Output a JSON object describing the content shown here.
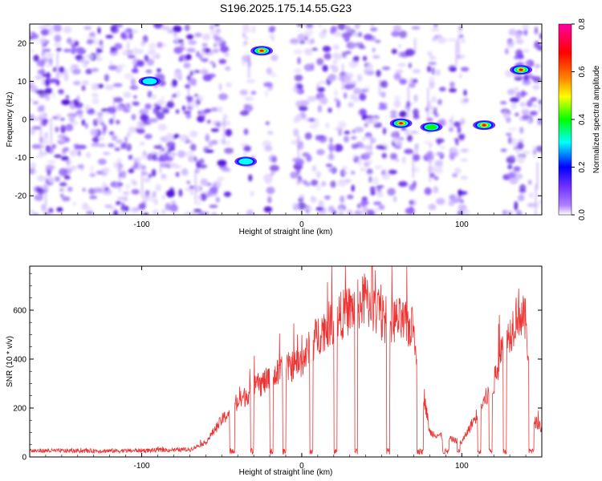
{
  "chart_data": [
    {
      "type": "heatmap",
      "title": "S196.2025.175.14.55.G23",
      "xlabel": "Height of straight line (km)",
      "ylabel": "Frequency (Hz)",
      "xlim": [
        -170,
        150
      ],
      "ylim": [
        -25,
        25
      ],
      "xticks": [
        -100,
        0,
        100
      ],
      "yticks": [
        -20,
        -10,
        0,
        10,
        20
      ],
      "colorbar": {
        "label": "Normalized spectral amplitude",
        "range": [
          0,
          0.8
        ],
        "ticks": [
          "0.0",
          "0.2",
          "0.4",
          "0.6",
          "0.8"
        ],
        "colormap": [
          "#ffffff",
          "#8040ff",
          "#0000ff",
          "#00ffff",
          "#00ff00",
          "#ffff00",
          "#ff8000",
          "#ff0000",
          "#ff00a0"
        ]
      },
      "blank_columns_x": [
        [
          -45,
          -37
        ],
        [
          -30,
          -22
        ],
        [
          -17,
          -5
        ],
        [
          53,
          56
        ],
        [
          72,
          78
        ],
        [
          88,
          93
        ],
        [
          103,
          126
        ]
      ],
      "hot_spots": [
        {
          "x": -95,
          "y": 10,
          "amp": 0.25
        },
        {
          "x": -35,
          "y": -11,
          "amp": 0.3
        },
        {
          "x": -25,
          "y": 18,
          "amp": 0.75
        },
        {
          "x": 62,
          "y": -1,
          "amp": 0.8
        },
        {
          "x": 81,
          "y": -2,
          "amp": 0.45
        },
        {
          "x": 114,
          "y": -1.5,
          "amp": 0.75
        },
        {
          "x": 137,
          "y": 13,
          "amp": 0.8
        }
      ]
    },
    {
      "type": "line",
      "xlabel": "Height of straight line (km)",
      "ylabel": "SNR (10 * v/v)",
      "xlim": [
        -170,
        150
      ],
      "ylim": [
        0,
        780
      ],
      "xticks": [
        -100,
        0,
        100
      ],
      "yticks": [
        0,
        200,
        400,
        600
      ],
      "line_color": "#ee3333",
      "envelope": {
        "x": [
          -170,
          -110,
          -70,
          -60,
          -50,
          -40,
          -30,
          -20,
          -10,
          0,
          10,
          20,
          30,
          40,
          50,
          60,
          70,
          80,
          90,
          100,
          110,
          120,
          125,
          130,
          135,
          140,
          145,
          150
        ],
        "y": [
          25,
          25,
          30,
          60,
          150,
          220,
          280,
          320,
          360,
          390,
          500,
          560,
          600,
          640,
          560,
          560,
          520,
          100,
          80,
          60,
          180,
          300,
          450,
          500,
          600,
          550,
          150,
          120
        ]
      },
      "dropouts_x": [
        [
          -45,
          -42
        ],
        [
          -32,
          -30
        ],
        [
          -20,
          -18
        ],
        [
          -12,
          -10
        ],
        [
          5,
          7
        ],
        [
          20,
          22
        ],
        [
          33,
          35
        ],
        [
          53,
          55
        ],
        [
          72,
          76
        ],
        [
          88,
          92
        ],
        [
          97,
          99
        ],
        [
          110,
          112
        ],
        [
          117,
          119
        ],
        [
          126,
          128
        ],
        [
          142,
          145
        ]
      ],
      "peak": {
        "x": 44,
        "y": 778
      }
    }
  ]
}
